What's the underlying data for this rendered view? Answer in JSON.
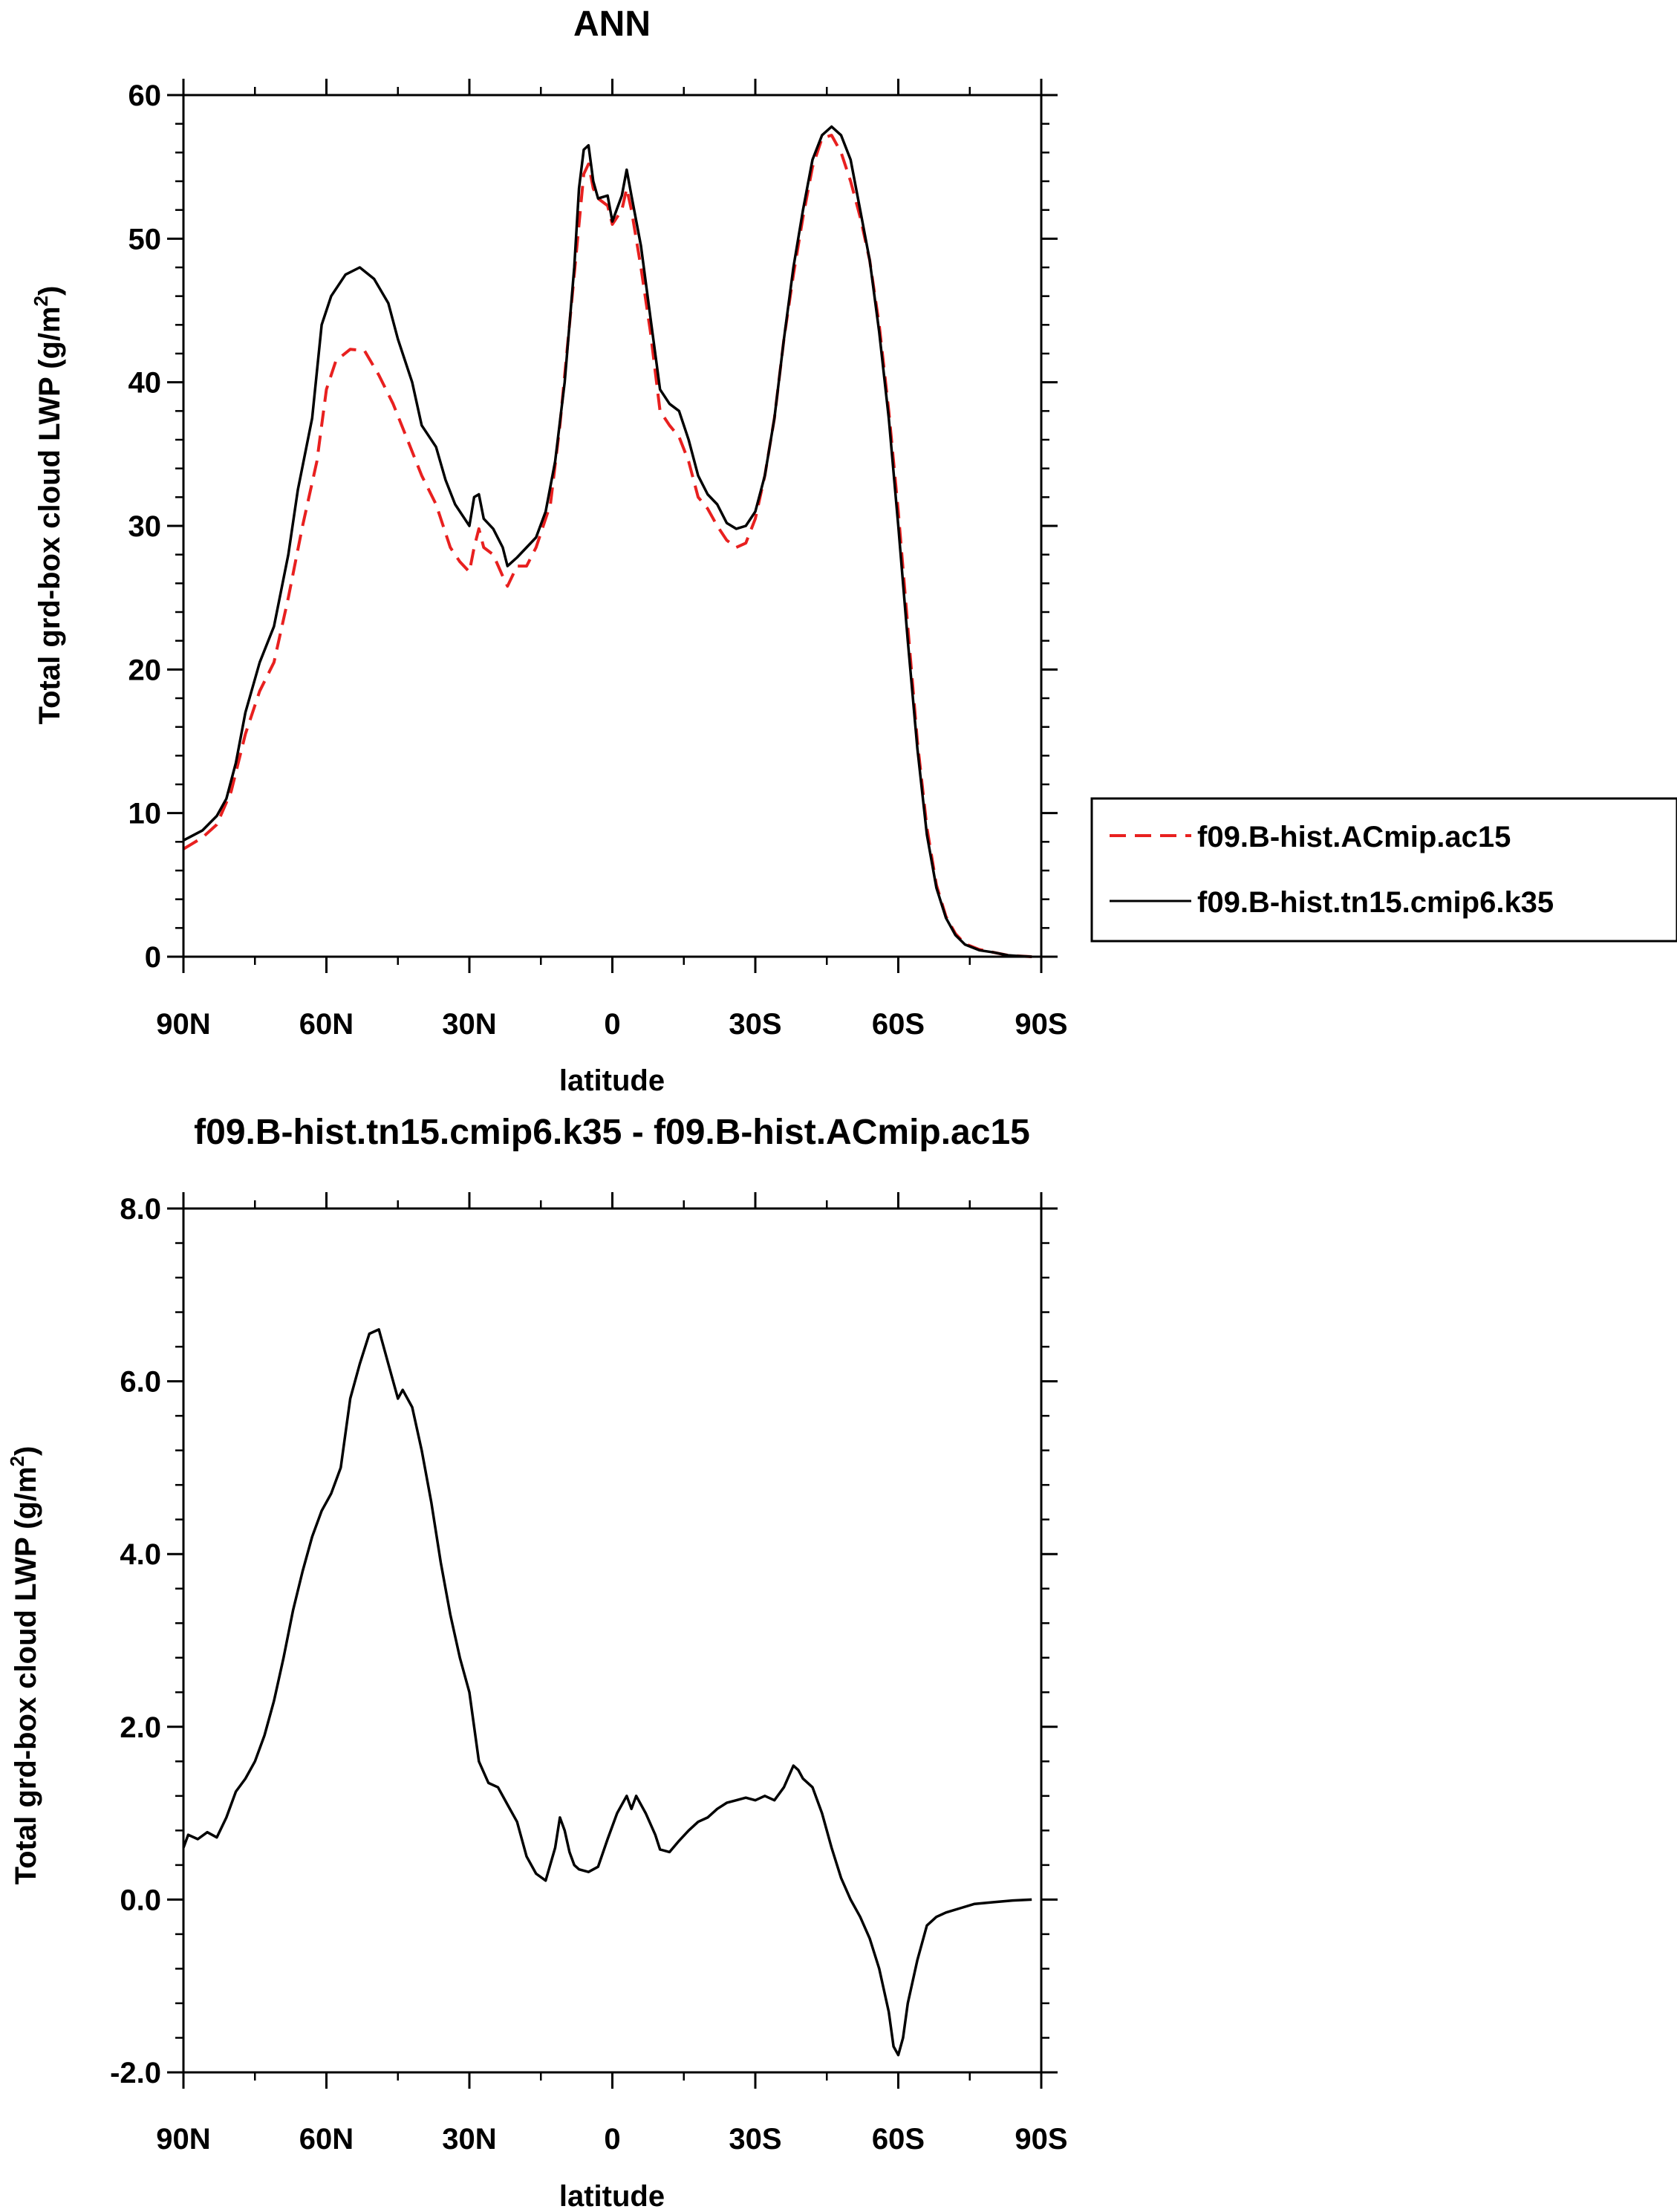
{
  "chart_data": [
    {
      "type": "line",
      "title": "ANN",
      "xlabel": "latitude",
      "ylabel": "Total grd-box cloud LWP (g/m²)",
      "ylabel_main": "Total grd-box cloud LWP (g/m",
      "ylabel_sup": "2",
      "ylabel_end": ")",
      "xlim": [
        90,
        -90
      ],
      "ylim": [
        0,
        60
      ],
      "xticks": [
        90,
        60,
        30,
        0,
        -30,
        -60,
        -90
      ],
      "xtick_labels": [
        "90N",
        "60N",
        "30N",
        "0",
        "30S",
        "60S",
        "90S"
      ],
      "yticks": [
        0,
        10,
        20,
        30,
        40,
        50,
        60
      ],
      "ytick_labels": [
        "0",
        "10",
        "20",
        "30",
        "40",
        "50",
        "60"
      ],
      "legend_position": "outside-right",
      "series": [
        {
          "name": "f09.B-hist.ACmip.ac15",
          "color": "#e8201f",
          "dash": "dashed",
          "points": [
            [
              90,
              7.5
            ],
            [
              86,
              8.3
            ],
            [
              83,
              9.2
            ],
            [
              80,
              11.5
            ],
            [
              77,
              15.5
            ],
            [
              74,
              18.5
            ],
            [
              71,
              20.5
            ],
            [
              68,
              25
            ],
            [
              65,
              30
            ],
            [
              62,
              34.5
            ],
            [
              60,
              39.5
            ],
            [
              58,
              41.5
            ],
            [
              55,
              42.3
            ],
            [
              52,
              42.2
            ],
            [
              49,
              40.5
            ],
            [
              46,
              38.5
            ],
            [
              43,
              36
            ],
            [
              40,
              33.5
            ],
            [
              37,
              31.5
            ],
            [
              34,
              28.5
            ],
            [
              32,
              27.5
            ],
            [
              30,
              26.8
            ],
            [
              29,
              28.5
            ],
            [
              28,
              29.8
            ],
            [
              27,
              28.5
            ],
            [
              25,
              28
            ],
            [
              23,
              26.5
            ],
            [
              22,
              25.8
            ],
            [
              20,
              27.2
            ],
            [
              18,
              27.2
            ],
            [
              16,
              28.5
            ],
            [
              13,
              31.5
            ],
            [
              11,
              37
            ],
            [
              9,
              44
            ],
            [
              7,
              51
            ],
            [
              6,
              54.5
            ],
            [
              5,
              55.2
            ],
            [
              4,
              53.5
            ],
            [
              3,
              52.8
            ],
            [
              1,
              52.3
            ],
            [
              0,
              51
            ],
            [
              -2,
              52
            ],
            [
              -3,
              53.5
            ],
            [
              -4,
              52
            ],
            [
              -6,
              48
            ],
            [
              -8,
              43.5
            ],
            [
              -10,
              38
            ],
            [
              -12,
              37
            ],
            [
              -14,
              36.2
            ],
            [
              -16,
              34.5
            ],
            [
              -18,
              32
            ],
            [
              -20,
              31.2
            ],
            [
              -22,
              30
            ],
            [
              -24,
              29
            ],
            [
              -26,
              28.5
            ],
            [
              -28,
              28.8
            ],
            [
              -30,
              30.5
            ],
            [
              -32,
              33.5
            ],
            [
              -34,
              37.5
            ],
            [
              -36,
              43
            ],
            [
              -38,
              47.5
            ],
            [
              -40,
              51.5
            ],
            [
              -42,
              55
            ],
            [
              -44,
              57
            ],
            [
              -46,
              57.2
            ],
            [
              -48,
              56
            ],
            [
              -50,
              54
            ],
            [
              -52,
              51.5
            ],
            [
              -54,
              48.5
            ],
            [
              -56,
              44
            ],
            [
              -58,
              38
            ],
            [
              -60,
              31
            ],
            [
              -62,
              23
            ],
            [
              -64,
              15
            ],
            [
              -66,
              9
            ],
            [
              -68,
              5
            ],
            [
              -70,
              2.8
            ],
            [
              -72,
              1.6
            ],
            [
              -74,
              0.9
            ],
            [
              -77,
              0.5
            ],
            [
              -80,
              0.3
            ],
            [
              -83,
              0.1
            ],
            [
              -85,
              0.05
            ],
            [
              -88,
              0.0
            ]
          ]
        },
        {
          "name": "f09.B-hist.tn15.cmip6.k35",
          "color": "#000000",
          "dash": "solid",
          "points": [
            [
              90,
              8.1
            ],
            [
              86,
              8.8
            ],
            [
              83,
              9.8
            ],
            [
              81,
              11
            ],
            [
              79,
              13.5
            ],
            [
              77,
              17
            ],
            [
              74,
              20.5
            ],
            [
              71,
              23
            ],
            [
              68,
              28
            ],
            [
              66,
              32.5
            ],
            [
              63,
              37.5
            ],
            [
              61,
              44
            ],
            [
              59,
              46
            ],
            [
              56,
              47.5
            ],
            [
              53,
              48
            ],
            [
              50,
              47.2
            ],
            [
              47,
              45.5
            ],
            [
              45,
              43
            ],
            [
              42,
              40
            ],
            [
              40,
              37
            ],
            [
              37,
              35.5
            ],
            [
              35,
              33.2
            ],
            [
              33,
              31.5
            ],
            [
              31,
              30.5
            ],
            [
              30,
              30
            ],
            [
              29,
              32
            ],
            [
              28,
              32.2
            ],
            [
              27,
              30.5
            ],
            [
              25,
              29.8
            ],
            [
              23,
              28.5
            ],
            [
              22,
              27.2
            ],
            [
              20,
              27.8
            ],
            [
              18,
              28.5
            ],
            [
              16,
              29.2
            ],
            [
              14,
              31
            ],
            [
              12,
              34.5
            ],
            [
              10,
              40
            ],
            [
              8,
              48
            ],
            [
              7,
              53.5
            ],
            [
              6,
              56.2
            ],
            [
              5,
              56.5
            ],
            [
              4,
              54
            ],
            [
              3,
              52.8
            ],
            [
              1,
              53
            ],
            [
              0,
              51.2
            ],
            [
              -2,
              53
            ],
            [
              -3,
              54.8
            ],
            [
              -4,
              53
            ],
            [
              -6,
              49.5
            ],
            [
              -8,
              44.5
            ],
            [
              -10,
              39.5
            ],
            [
              -12,
              38.5
            ],
            [
              -14,
              38
            ],
            [
              -16,
              36
            ],
            [
              -18,
              33.5
            ],
            [
              -20,
              32.2
            ],
            [
              -22,
              31.5
            ],
            [
              -24,
              30.2
            ],
            [
              -26,
              29.8
            ],
            [
              -28,
              30
            ],
            [
              -30,
              31
            ],
            [
              -32,
              33.5
            ],
            [
              -34,
              37.5
            ],
            [
              -36,
              43
            ],
            [
              -38,
              48
            ],
            [
              -40,
              52
            ],
            [
              -42,
              55.5
            ],
            [
              -44,
              57.2
            ],
            [
              -46,
              57.8
            ],
            [
              -48,
              57.2
            ],
            [
              -50,
              55.5
            ],
            [
              -52,
              52
            ],
            [
              -54,
              48.5
            ],
            [
              -56,
              43.5
            ],
            [
              -58,
              37.5
            ],
            [
              -60,
              30
            ],
            [
              -62,
              22
            ],
            [
              -64,
              14.5
            ],
            [
              -66,
              8.5
            ],
            [
              -68,
              4.8
            ],
            [
              -70,
              2.7
            ],
            [
              -72,
              1.5
            ],
            [
              -74,
              0.85
            ],
            [
              -77,
              0.45
            ],
            [
              -80,
              0.3
            ],
            [
              -83,
              0.1
            ],
            [
              -85,
              0.05
            ],
            [
              -88,
              0.0
            ]
          ]
        }
      ]
    },
    {
      "type": "line",
      "title": "f09.B-hist.tn15.cmip6.k35 - f09.B-hist.ACmip.ac15",
      "xlabel": "latitude",
      "ylabel": "Total grd-box cloud LWP (g/m²)",
      "ylabel_main": "Total grd-box cloud LWP (g/m",
      "ylabel_sup": "2",
      "ylabel_end": ")",
      "xlim": [
        90,
        -90
      ],
      "ylim": [
        -2,
        8
      ],
      "xticks": [
        90,
        60,
        30,
        0,
        -30,
        -60,
        -90
      ],
      "xtick_labels": [
        "90N",
        "60N",
        "30N",
        "0",
        "30S",
        "60S",
        "90S"
      ],
      "yticks": [
        -2,
        0,
        2,
        4,
        6,
        8
      ],
      "ytick_labels": [
        "-2.0",
        "0.0",
        "2.0",
        "4.0",
        "6.0",
        "8.0"
      ],
      "series": [
        {
          "color": "#000000",
          "dash": "solid",
          "points": [
            [
              90,
              0.6
            ],
            [
              89,
              0.75
            ],
            [
              87,
              0.7
            ],
            [
              85,
              0.78
            ],
            [
              83,
              0.72
            ],
            [
              81,
              0.95
            ],
            [
              79,
              1.25
            ],
            [
              77,
              1.4
            ],
            [
              75,
              1.6
            ],
            [
              73,
              1.9
            ],
            [
              71,
              2.3
            ],
            [
              69,
              2.8
            ],
            [
              67,
              3.35
            ],
            [
              65,
              3.8
            ],
            [
              63,
              4.2
            ],
            [
              61,
              4.5
            ],
            [
              59,
              4.7
            ],
            [
              57,
              5.0
            ],
            [
              55,
              5.8
            ],
            [
              53,
              6.2
            ],
            [
              51,
              6.55
            ],
            [
              49,
              6.6
            ],
            [
              47,
              6.2
            ],
            [
              45,
              5.8
            ],
            [
              44,
              5.9
            ],
            [
              42,
              5.7
            ],
            [
              40,
              5.2
            ],
            [
              38,
              4.6
            ],
            [
              36,
              3.9
            ],
            [
              34,
              3.3
            ],
            [
              32,
              2.8
            ],
            [
              30,
              2.4
            ],
            [
              28,
              1.6
            ],
            [
              26,
              1.35
            ],
            [
              24,
              1.3
            ],
            [
              22,
              1.1
            ],
            [
              20,
              0.9
            ],
            [
              18,
              0.5
            ],
            [
              16,
              0.3
            ],
            [
              14,
              0.22
            ],
            [
              12,
              0.6
            ],
            [
              11,
              0.95
            ],
            [
              10,
              0.8
            ],
            [
              9,
              0.55
            ],
            [
              8,
              0.4
            ],
            [
              7,
              0.35
            ],
            [
              5,
              0.32
            ],
            [
              3,
              0.38
            ],
            [
              1,
              0.7
            ],
            [
              -1,
              1.0
            ],
            [
              -3,
              1.2
            ],
            [
              -4,
              1.05
            ],
            [
              -5,
              1.2
            ],
            [
              -7,
              1.0
            ],
            [
              -9,
              0.75
            ],
            [
              -10,
              0.58
            ],
            [
              -12,
              0.55
            ],
            [
              -14,
              0.68
            ],
            [
              -16,
              0.8
            ],
            [
              -18,
              0.9
            ],
            [
              -20,
              0.95
            ],
            [
              -22,
              1.05
            ],
            [
              -24,
              1.12
            ],
            [
              -26,
              1.15
            ],
            [
              -28,
              1.18
            ],
            [
              -30,
              1.15
            ],
            [
              -32,
              1.2
            ],
            [
              -34,
              1.15
            ],
            [
              -36,
              1.3
            ],
            [
              -38,
              1.55
            ],
            [
              -39,
              1.5
            ],
            [
              -40,
              1.4
            ],
            [
              -42,
              1.3
            ],
            [
              -44,
              1.0
            ],
            [
              -46,
              0.6
            ],
            [
              -48,
              0.25
            ],
            [
              -50,
              0.0
            ],
            [
              -52,
              -0.2
            ],
            [
              -54,
              -0.45
            ],
            [
              -56,
              -0.8
            ],
            [
              -58,
              -1.3
            ],
            [
              -59,
              -1.7
            ],
            [
              -60,
              -1.8
            ],
            [
              -61,
              -1.6
            ],
            [
              -62,
              -1.2
            ],
            [
              -64,
              -0.7
            ],
            [
              -66,
              -0.3
            ],
            [
              -68,
              -0.2
            ],
            [
              -70,
              -0.15
            ],
            [
              -73,
              -0.1
            ],
            [
              -76,
              -0.05
            ],
            [
              -80,
              -0.03
            ],
            [
              -84,
              -0.01
            ],
            [
              -88,
              0.0
            ]
          ]
        }
      ]
    }
  ]
}
